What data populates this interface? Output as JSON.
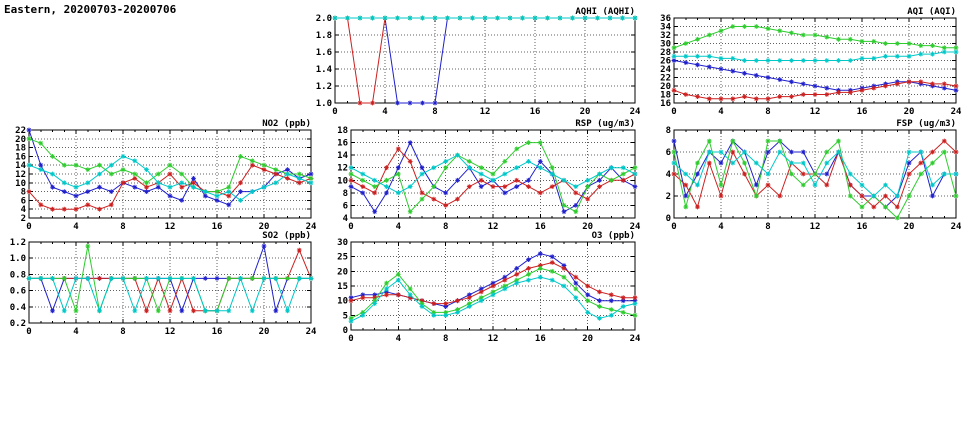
{
  "page_title": "Eastern, 20200703-20200706",
  "chart_data": [
    {
      "id": "aqhi",
      "type": "line",
      "title": "AQHI (AQHI)",
      "xlim": [
        0,
        24
      ],
      "xticks": [
        0,
        4,
        8,
        12,
        16,
        20,
        24
      ],
      "ylim": [
        1.0,
        2.0
      ],
      "yticks": [
        1.0,
        1.2,
        1.4,
        1.6,
        1.8,
        2.0
      ],
      "ytick_decimals": 1,
      "grid": true,
      "legend": "none",
      "x": [
        0,
        1,
        2,
        3,
        4,
        5,
        6,
        7,
        8,
        9,
        10,
        11,
        12,
        13,
        14,
        15,
        16,
        17,
        18,
        19,
        20,
        21,
        22,
        23,
        24
      ],
      "series": [
        {
          "name": "blue",
          "color": "#2020cc",
          "values": [
            2,
            2,
            2,
            2,
            2,
            1,
            1,
            1,
            1,
            2,
            2,
            2,
            2,
            2,
            2,
            2,
            2,
            2,
            2,
            2,
            2,
            2,
            2,
            2,
            2
          ]
        },
        {
          "name": "red",
          "color": "#cc2020",
          "values": [
            2,
            2,
            1,
            1,
            2,
            2,
            2,
            2,
            2,
            2,
            2,
            2,
            2,
            2,
            2,
            2,
            2,
            2,
            2,
            2,
            2,
            2,
            2,
            2,
            2
          ]
        },
        {
          "name": "green",
          "color": "#2ecc2e",
          "values": [
            2,
            2,
            2,
            2,
            2,
            2,
            2,
            2,
            2,
            2,
            2,
            2,
            2,
            2,
            2,
            2,
            2,
            2,
            2,
            2,
            2,
            2,
            2,
            2,
            2
          ]
        },
        {
          "name": "cyan",
          "color": "#00c8c8",
          "values": [
            2,
            2,
            2,
            2,
            2,
            2,
            2,
            2,
            2,
            2,
            2,
            2,
            2,
            2,
            2,
            2,
            2,
            2,
            2,
            2,
            2,
            2,
            2,
            2,
            2
          ]
        }
      ]
    },
    {
      "id": "aqi",
      "type": "line",
      "title": "AQI (AQI)",
      "xlim": [
        0,
        24
      ],
      "xticks": [
        0,
        4,
        8,
        12,
        16,
        20,
        24
      ],
      "ylim": [
        16,
        36
      ],
      "yticks": [
        16,
        18,
        20,
        22,
        24,
        26,
        28,
        30,
        32,
        34,
        36
      ],
      "ytick_decimals": 0,
      "grid": true,
      "legend": "none",
      "x": [
        0,
        1,
        2,
        3,
        4,
        5,
        6,
        7,
        8,
        9,
        10,
        11,
        12,
        13,
        14,
        15,
        16,
        17,
        18,
        19,
        20,
        21,
        22,
        23,
        24
      ],
      "series": [
        {
          "name": "blue",
          "color": "#2020cc",
          "values": [
            26,
            25.5,
            25,
            24.5,
            24,
            23.5,
            23,
            22.5,
            22,
            21.5,
            21,
            20.5,
            20,
            19.5,
            19,
            19,
            19.5,
            20,
            20.5,
            21,
            21,
            20.5,
            20,
            19.5,
            19
          ]
        },
        {
          "name": "red",
          "color": "#cc2020",
          "values": [
            19,
            18,
            17.5,
            17,
            17,
            17,
            17.5,
            17,
            17,
            17.5,
            17.5,
            18,
            18,
            18,
            18.5,
            18.5,
            19,
            19.5,
            20,
            20.5,
            21,
            21,
            20.5,
            20.5,
            20
          ]
        },
        {
          "name": "green",
          "color": "#2ecc2e",
          "values": [
            29,
            30,
            31,
            32,
            33,
            34,
            34,
            34,
            33.5,
            33,
            32.5,
            32,
            32,
            31.5,
            31,
            31,
            30.5,
            30.5,
            30,
            30,
            30,
            29.5,
            29.5,
            29,
            29
          ]
        },
        {
          "name": "cyan",
          "color": "#00c8c8",
          "values": [
            27,
            27,
            27,
            27,
            26.5,
            26.5,
            26,
            26,
            26,
            26,
            26,
            26,
            26,
            26,
            26,
            26,
            26.5,
            26.5,
            27,
            27,
            27,
            27.5,
            27.5,
            28,
            28
          ]
        }
      ]
    },
    {
      "id": "no2",
      "type": "line",
      "title": "NO2 (ppb)",
      "xlim": [
        0,
        24
      ],
      "xticks": [
        0,
        4,
        8,
        12,
        16,
        20,
        24
      ],
      "ylim": [
        2,
        22
      ],
      "yticks": [
        2,
        4,
        6,
        8,
        10,
        12,
        14,
        16,
        18,
        20,
        22
      ],
      "ytick_decimals": 0,
      "grid": true,
      "legend": "none",
      "x": [
        0,
        1,
        2,
        3,
        4,
        5,
        6,
        7,
        8,
        9,
        10,
        11,
        12,
        13,
        14,
        15,
        16,
        17,
        18,
        19,
        20,
        21,
        22,
        23,
        24
      ],
      "series": [
        {
          "name": "blue",
          "color": "#2020cc",
          "values": [
            22,
            14,
            9,
            8,
            7,
            8,
            9,
            8,
            10,
            9,
            8,
            9,
            7,
            6,
            11,
            7,
            6,
            5,
            8,
            8,
            9,
            12,
            13,
            11,
            12
          ]
        },
        {
          "name": "red",
          "color": "#cc2020",
          "values": [
            8,
            5,
            4,
            4,
            4,
            5,
            4,
            5,
            10,
            11,
            9,
            10,
            12,
            9,
            10,
            8,
            8,
            7,
            10,
            14,
            13,
            12,
            11,
            10,
            11
          ]
        },
        {
          "name": "green",
          "color": "#2ecc2e",
          "values": [
            20,
            19,
            16,
            14,
            14,
            13,
            14,
            12,
            13,
            12,
            10,
            12,
            14,
            12,
            9,
            8,
            8,
            9,
            16,
            15,
            14,
            13,
            12,
            12,
            11
          ]
        },
        {
          "name": "cyan",
          "color": "#00c8c8",
          "values": [
            14,
            13,
            12,
            10,
            9,
            10,
            12,
            14,
            16,
            15,
            13,
            10,
            9,
            10,
            9,
            8,
            7,
            8,
            6,
            8,
            9,
            10,
            12,
            11,
            10
          ]
        }
      ]
    },
    {
      "id": "rsp",
      "type": "line",
      "title": "RSP (ug/m3)",
      "xlim": [
        0,
        24
      ],
      "xticks": [
        0,
        4,
        8,
        12,
        16,
        20,
        24
      ],
      "ylim": [
        4,
        18
      ],
      "yticks": [
        4,
        6,
        8,
        10,
        12,
        14,
        16,
        18
      ],
      "ytick_decimals": 0,
      "grid": true,
      "legend": "none",
      "x": [
        0,
        1,
        2,
        3,
        4,
        5,
        6,
        7,
        8,
        9,
        10,
        11,
        12,
        13,
        14,
        15,
        16,
        17,
        18,
        19,
        20,
        21,
        22,
        23,
        24
      ],
      "series": [
        {
          "name": "blue",
          "color": "#2020cc",
          "values": [
            9,
            8,
            5,
            8,
            12,
            16,
            12,
            9,
            8,
            10,
            12,
            9,
            10,
            8,
            9,
            10,
            13,
            11,
            5,
            6,
            9,
            10,
            12,
            10,
            9
          ]
        },
        {
          "name": "red",
          "color": "#cc2020",
          "values": [
            10,
            9,
            8,
            12,
            15,
            13,
            8,
            7,
            6,
            7,
            9,
            10,
            9,
            9,
            10,
            9,
            8,
            9,
            10,
            8,
            7,
            9,
            10,
            10,
            11
          ]
        },
        {
          "name": "green",
          "color": "#2ecc2e",
          "values": [
            11,
            10,
            9,
            10,
            11,
            5,
            7,
            9,
            12,
            14,
            13,
            12,
            11,
            13,
            15,
            16,
            16,
            12,
            6,
            5,
            9,
            11,
            10,
            11,
            12
          ]
        },
        {
          "name": "cyan",
          "color": "#00c8c8",
          "values": [
            12,
            11,
            10,
            9,
            8,
            9,
            11,
            12,
            13,
            14,
            12,
            11,
            10,
            11,
            12,
            13,
            12,
            11,
            10,
            9,
            10,
            11,
            12,
            12,
            11
          ]
        }
      ]
    },
    {
      "id": "fsp",
      "type": "line",
      "title": "FSP (ug/m3)",
      "xlim": [
        0,
        24
      ],
      "xticks": [
        0,
        4,
        8,
        12,
        16,
        20,
        24
      ],
      "ylim": [
        0,
        8
      ],
      "yticks": [
        0,
        2,
        4,
        6,
        8
      ],
      "ytick_decimals": 0,
      "grid": true,
      "legend": "none",
      "x": [
        0,
        1,
        2,
        3,
        4,
        5,
        6,
        7,
        8,
        9,
        10,
        11,
        12,
        13,
        14,
        15,
        16,
        17,
        18,
        19,
        20,
        21,
        22,
        23,
        24
      ],
      "series": [
        {
          "name": "blue",
          "color": "#2020cc",
          "values": [
            7,
            2,
            4,
            6,
            5,
            7,
            6,
            3,
            6,
            7,
            6,
            6,
            4,
            4,
            6,
            3,
            2,
            2,
            1,
            2,
            5,
            6,
            2,
            4,
            4
          ]
        },
        {
          "name": "red",
          "color": "#cc2020",
          "values": [
            4,
            3,
            1,
            5,
            2,
            6,
            4,
            2,
            3,
            2,
            5,
            4,
            4,
            3,
            6,
            3,
            2,
            1,
            2,
            1,
            4,
            5,
            6,
            7,
            6
          ]
        },
        {
          "name": "green",
          "color": "#2ecc2e",
          "values": [
            6,
            1,
            5,
            7,
            3,
            7,
            5,
            2,
            7,
            7,
            4,
            3,
            4,
            6,
            7,
            2,
            1,
            2,
            1,
            0,
            2,
            4,
            5,
            6,
            2
          ]
        },
        {
          "name": "cyan",
          "color": "#00c8c8",
          "values": [
            5,
            4,
            3,
            6,
            6,
            5,
            6,
            5,
            4,
            6,
            5,
            5,
            3,
            5,
            6,
            4,
            3,
            2,
            3,
            2,
            6,
            6,
            3,
            4,
            4
          ]
        }
      ]
    },
    {
      "id": "so2",
      "type": "line",
      "title": "SO2 (ppb)",
      "xlim": [
        0,
        24
      ],
      "xticks": [
        0,
        4,
        8,
        12,
        16,
        20,
        24
      ],
      "ylim": [
        0.2,
        1.2
      ],
      "yticks": [
        0.2,
        0.4,
        0.6,
        0.8,
        1.0,
        1.2
      ],
      "ytick_decimals": 1,
      "grid": true,
      "legend": "none",
      "x": [
        0,
        1,
        2,
        3,
        4,
        5,
        6,
        7,
        8,
        9,
        10,
        11,
        12,
        13,
        14,
        15,
        16,
        17,
        18,
        19,
        20,
        21,
        22,
        23,
        24
      ],
      "series": [
        {
          "name": "blue",
          "color": "#2020cc",
          "values": [
            0.75,
            0.75,
            0.35,
            0.75,
            0.75,
            0.75,
            0.75,
            0.75,
            0.75,
            0.75,
            0.75,
            0.75,
            0.75,
            0.35,
            0.75,
            0.75,
            0.75,
            0.75,
            0.75,
            0.75,
            1.15,
            0.35,
            0.75,
            0.75,
            0.75
          ]
        },
        {
          "name": "red",
          "color": "#cc2020",
          "values": [
            0.75,
            0.75,
            0.75,
            0.75,
            0.75,
            0.75,
            0.75,
            0.75,
            0.75,
            0.75,
            0.35,
            0.75,
            0.35,
            0.75,
            0.35,
            0.35,
            0.35,
            0.75,
            0.75,
            0.75,
            0.75,
            0.75,
            0.75,
            1.1,
            0.75
          ]
        },
        {
          "name": "green",
          "color": "#2ecc2e",
          "values": [
            0.75,
            0.75,
            0.75,
            0.75,
            0.35,
            1.15,
            0.35,
            0.75,
            0.75,
            0.75,
            0.75,
            0.35,
            0.75,
            0.75,
            0.75,
            0.35,
            0.35,
            0.75,
            0.75,
            0.75,
            0.75,
            0.75,
            0.75,
            0.75,
            0.75
          ]
        },
        {
          "name": "cyan",
          "color": "#00c8c8",
          "values": [
            0.75,
            0.75,
            0.75,
            0.35,
            0.75,
            0.75,
            0.35,
            0.75,
            0.75,
            0.35,
            0.75,
            0.75,
            0.75,
            0.75,
            0.75,
            0.35,
            0.35,
            0.35,
            0.75,
            0.35,
            0.75,
            0.75,
            0.35,
            0.75,
            0.75
          ]
        }
      ]
    },
    {
      "id": "o3",
      "type": "line",
      "title": "O3 (ppb)",
      "xlim": [
        0,
        24
      ],
      "xticks": [
        0,
        4,
        8,
        12,
        16,
        20,
        24
      ],
      "ylim": [
        0,
        30
      ],
      "yticks": [
        0,
        5,
        10,
        15,
        20,
        25,
        30
      ],
      "ytick_decimals": 0,
      "grid": true,
      "legend": "none",
      "x": [
        0,
        1,
        2,
        3,
        4,
        5,
        6,
        7,
        8,
        9,
        10,
        11,
        12,
        13,
        14,
        15,
        16,
        17,
        18,
        19,
        20,
        21,
        22,
        23,
        24
      ],
      "series": [
        {
          "name": "blue",
          "color": "#2020cc",
          "values": [
            11,
            12,
            12,
            13,
            12,
            11,
            10,
            9,
            8,
            10,
            12,
            14,
            16,
            18,
            21,
            24,
            26,
            25,
            22,
            16,
            12,
            10,
            10,
            10,
            10
          ]
        },
        {
          "name": "red",
          "color": "#cc2020",
          "values": [
            10,
            11,
            11,
            12,
            12,
            11,
            10,
            9,
            9,
            10,
            11,
            13,
            15,
            17,
            19,
            21,
            22,
            23,
            21,
            18,
            15,
            13,
            12,
            11,
            11
          ]
        },
        {
          "name": "green",
          "color": "#2ecc2e",
          "values": [
            4,
            6,
            10,
            16,
            19,
            14,
            9,
            6,
            6,
            7,
            9,
            11,
            13,
            15,
            17,
            19,
            21,
            20,
            18,
            14,
            10,
            8,
            7,
            6,
            5
          ]
        },
        {
          "name": "cyan",
          "color": "#00c8c8",
          "values": [
            3,
            5,
            9,
            14,
            17,
            12,
            8,
            5,
            5,
            6,
            8,
            10,
            12,
            14,
            16,
            17,
            18,
            17,
            15,
            11,
            6,
            4,
            5,
            8,
            9
          ]
        }
      ]
    }
  ]
}
